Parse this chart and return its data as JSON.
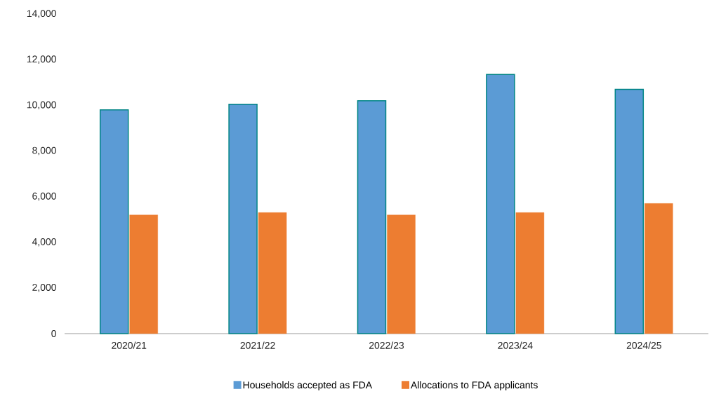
{
  "chart_data": {
    "type": "bar",
    "categories": [
      "2020/21",
      "2021/22",
      "2022/23",
      "2023/24",
      "2024/25"
    ],
    "series": [
      {
        "name": "Households accepted as FDA",
        "color": "#5b9bd5",
        "values": [
          9800,
          10050,
          10200,
          11350,
          10700
        ]
      },
      {
        "name": "Allocations to FDA applicants",
        "color": "#ed7d31",
        "values": [
          5200,
          5300,
          5200,
          5300,
          5700
        ]
      }
    ],
    "ylim": [
      0,
      14000
    ],
    "yticks": [
      0,
      {
        "value": 2000,
        "label": "2,000"
      },
      {
        "value": 4000,
        "label": "4,000"
      },
      {
        "value": 6000,
        "label": "6,000"
      },
      {
        "value": 8000,
        "label": "8,000"
      },
      {
        "value": 10000,
        "label": "10,000"
      },
      {
        "value": 12000,
        "label": "12,000"
      },
      {
        "value": 14000,
        "label": "14,000"
      }
    ],
    "grid": false,
    "legend": "bottom"
  }
}
